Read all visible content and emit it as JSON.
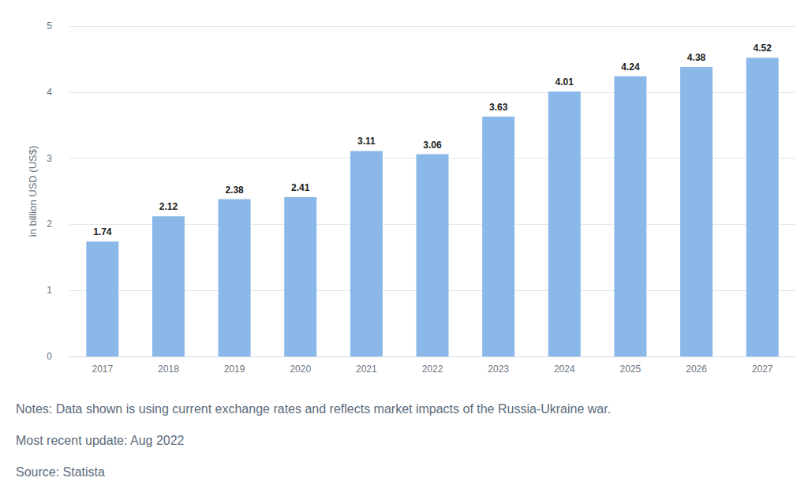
{
  "chart_data": {
    "type": "bar",
    "y_label": "in billion USD (US$)",
    "categories": [
      "2017",
      "2018",
      "2019",
      "2020",
      "2021",
      "2022",
      "2023",
      "2024",
      "2025",
      "2026",
      "2027"
    ],
    "values": [
      1.74,
      2.12,
      2.38,
      2.41,
      3.11,
      3.06,
      3.63,
      4.01,
      4.24,
      4.38,
      4.52
    ],
    "color": "#8ab8e8",
    "ylim": [
      0,
      5
    ],
    "yticks": [
      0,
      1,
      2,
      3,
      4,
      5
    ],
    "grid": true,
    "data_labels": true,
    "annotations": [
      "Notes: Data shown is using current exchange rates and reflects market impacts of the Russia-Ukraine war.",
      "Most recent update: Aug 2022",
      "Source: Statista"
    ]
  }
}
